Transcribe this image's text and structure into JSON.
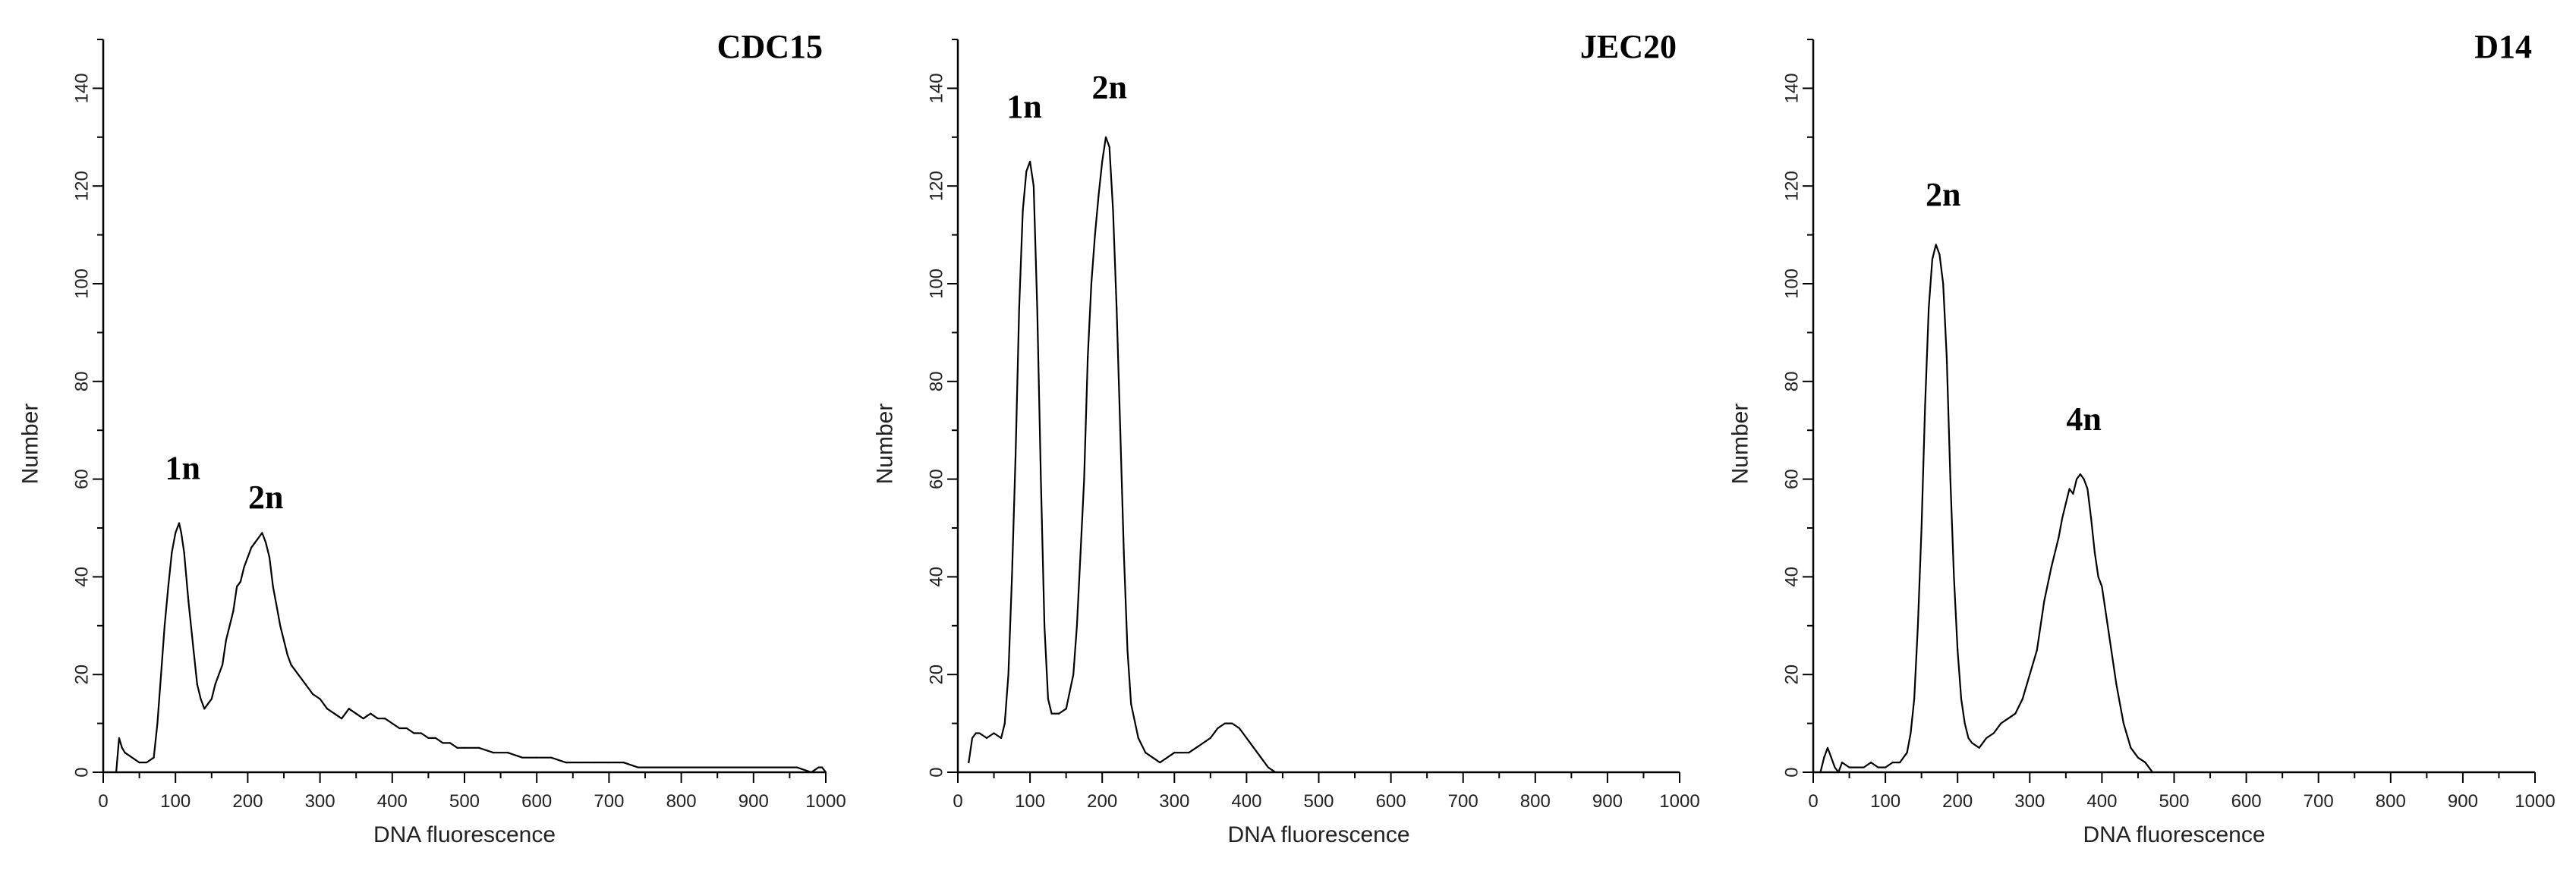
{
  "chart_data": [
    {
      "type": "line",
      "title": "CDC15",
      "xlabel": "DNA fluorescence",
      "ylabel": "Number",
      "xlim": [
        0,
        1000
      ],
      "ylim": [
        0,
        150
      ],
      "xticks": [
        "0",
        "100",
        "200",
        "300",
        "400",
        "500",
        "600",
        "700",
        "800",
        "900",
        "1000"
      ],
      "yticks": [
        "0",
        "20",
        "40",
        "60",
        "80",
        "100",
        "120",
        "140"
      ],
      "grid": false,
      "legend": "none",
      "annotations": [
        {
          "text": "1n",
          "x": 110,
          "y": 60
        },
        {
          "text": "2n",
          "x": 225,
          "y": 54
        }
      ],
      "x": [
        18,
        22,
        26,
        30,
        40,
        50,
        60,
        70,
        75,
        80,
        85,
        90,
        95,
        100,
        105,
        108,
        112,
        118,
        125,
        130,
        135,
        140,
        145,
        150,
        155,
        160,
        165,
        170,
        175,
        180,
        185,
        190,
        195,
        200,
        205,
        210,
        215,
        220,
        225,
        230,
        235,
        240,
        245,
        250,
        255,
        260,
        265,
        270,
        275,
        280,
        290,
        300,
        310,
        320,
        330,
        340,
        350,
        360,
        370,
        380,
        390,
        400,
        410,
        420,
        430,
        440,
        450,
        460,
        470,
        480,
        490,
        500,
        520,
        540,
        560,
        580,
        600,
        620,
        640,
        660,
        680,
        700,
        720,
        740,
        760,
        780,
        800,
        820,
        840,
        860,
        880,
        900,
        920,
        940,
        960,
        980,
        990,
        995,
        1000
      ],
      "values": [
        0,
        7,
        5,
        4,
        3,
        2,
        2,
        3,
        10,
        20,
        30,
        38,
        45,
        49,
        51,
        49,
        45,
        35,
        25,
        18,
        15,
        13,
        14,
        15,
        18,
        20,
        22,
        27,
        30,
        33,
        38,
        39,
        42,
        44,
        46,
        47,
        48,
        49,
        47,
        44,
        38,
        34,
        30,
        27,
        24,
        22,
        21,
        20,
        19,
        18,
        16,
        15,
        13,
        12,
        11,
        13,
        12,
        11,
        12,
        11,
        11,
        10,
        9,
        9,
        8,
        8,
        7,
        7,
        6,
        6,
        5,
        5,
        5,
        4,
        4,
        3,
        3,
        3,
        2,
        2,
        2,
        2,
        2,
        1,
        1,
        1,
        1,
        1,
        1,
        1,
        1,
        1,
        1,
        1,
        1,
        0,
        1,
        1,
        0
      ]
    },
    {
      "type": "line",
      "title": "JEC20",
      "xlabel": "DNA fluorescence",
      "ylabel": "Number",
      "xlim": [
        0,
        1000
      ],
      "ylim": [
        0,
        150
      ],
      "xticks": [
        "0",
        "100",
        "200",
        "300",
        "400",
        "500",
        "600",
        "700",
        "800",
        "900",
        "1000"
      ],
      "yticks": [
        "0",
        "20",
        "40",
        "60",
        "80",
        "100",
        "120",
        "140"
      ],
      "grid": false,
      "legend": "none",
      "annotations": [
        {
          "text": "1n",
          "x": 92,
          "y": 134
        },
        {
          "text": "2n",
          "x": 210,
          "y": 138
        }
      ],
      "x": [
        15,
        20,
        25,
        30,
        40,
        50,
        60,
        65,
        70,
        75,
        80,
        85,
        90,
        95,
        100,
        105,
        110,
        115,
        120,
        125,
        130,
        140,
        150,
        160,
        165,
        170,
        175,
        180,
        185,
        190,
        195,
        200,
        205,
        210,
        215,
        220,
        225,
        230,
        235,
        240,
        250,
        260,
        270,
        280,
        290,
        300,
        310,
        320,
        330,
        340,
        350,
        360,
        370,
        380,
        390,
        400,
        410,
        420,
        430,
        440
      ],
      "values": [
        2,
        7,
        8,
        8,
        7,
        8,
        7,
        10,
        20,
        40,
        65,
        95,
        115,
        123,
        125,
        120,
        95,
        60,
        30,
        15,
        12,
        12,
        13,
        20,
        30,
        45,
        60,
        85,
        100,
        110,
        118,
        125,
        130,
        128,
        115,
        95,
        70,
        45,
        25,
        14,
        7,
        4,
        3,
        2,
        3,
        4,
        4,
        4,
        5,
        6,
        7,
        9,
        10,
        10,
        9,
        7,
        5,
        3,
        1,
        0
      ]
    },
    {
      "type": "line",
      "title": "D14",
      "xlabel": "DNA fluorescence",
      "ylabel": "Number",
      "xlim": [
        0,
        1000
      ],
      "ylim": [
        0,
        150
      ],
      "xticks": [
        "0",
        "100",
        "200",
        "300",
        "400",
        "500",
        "600",
        "700",
        "800",
        "900",
        "1000"
      ],
      "yticks": [
        "0",
        "20",
        "40",
        "60",
        "80",
        "100",
        "120",
        "140"
      ],
      "grid": false,
      "legend": "none",
      "annotations": [
        {
          "text": "2n",
          "x": 180,
          "y": 116
        },
        {
          "text": "4n",
          "x": 375,
          "y": 70
        }
      ],
      "x": [
        10,
        15,
        20,
        25,
        30,
        35,
        40,
        50,
        60,
        70,
        80,
        90,
        100,
        110,
        120,
        130,
        135,
        140,
        145,
        150,
        155,
        160,
        165,
        170,
        175,
        180,
        185,
        190,
        195,
        200,
        205,
        210,
        215,
        220,
        230,
        240,
        250,
        260,
        270,
        280,
        290,
        300,
        310,
        320,
        330,
        340,
        345,
        350,
        355,
        360,
        365,
        370,
        375,
        380,
        385,
        390,
        395,
        400,
        410,
        420,
        430,
        440,
        450,
        460,
        470
      ],
      "values": [
        0,
        3,
        5,
        3,
        1,
        0,
        2,
        1,
        1,
        1,
        2,
        1,
        1,
        2,
        2,
        4,
        8,
        15,
        30,
        50,
        75,
        95,
        105,
        108,
        106,
        100,
        85,
        60,
        40,
        25,
        15,
        10,
        7,
        6,
        5,
        7,
        8,
        10,
        11,
        12,
        15,
        20,
        25,
        35,
        42,
        48,
        52,
        55,
        58,
        57,
        60,
        61,
        60,
        58,
        52,
        45,
        40,
        38,
        28,
        18,
        10,
        5,
        3,
        2,
        0
      ]
    }
  ]
}
